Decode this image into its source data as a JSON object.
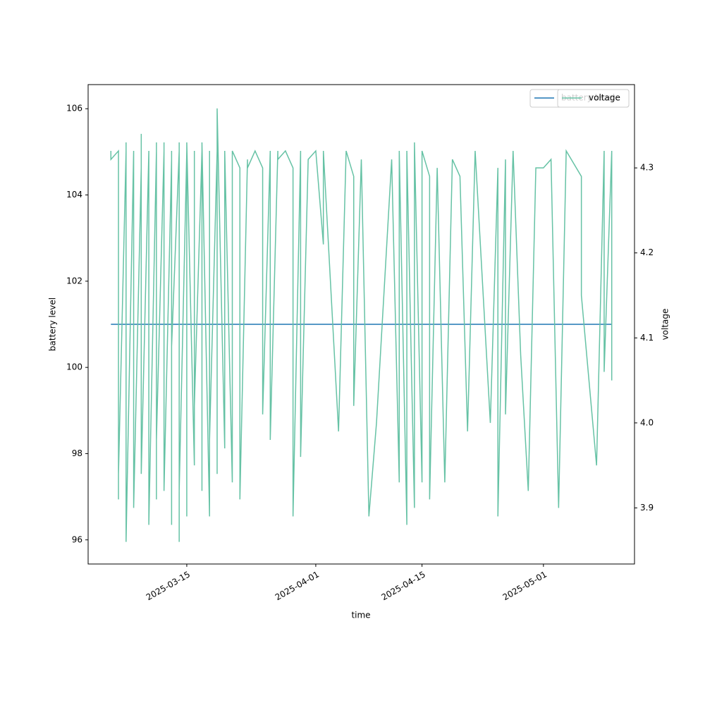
{
  "chart_data": {
    "type": "line",
    "xlabel": "time",
    "ylabel": "battery level",
    "y2label": "voltage",
    "xlim": [
      "2025-03-02",
      "2025-05-13"
    ],
    "xticks": [
      "2025-03-15",
      "2025-04-01",
      "2025-04-15",
      "2025-05-01"
    ],
    "ylim": [
      95.44,
      106.56
    ],
    "yticks": [
      96,
      98,
      100,
      102,
      104,
      106
    ],
    "y2lim": [
      3.834,
      4.398
    ],
    "y2ticks": [
      3.9,
      {
        "value": 4,
        "label": "4.0"
      },
      4.1,
      4.2,
      4.3
    ],
    "legend": "upper right",
    "series": [
      {
        "name": "battery level",
        "color": "#1f77b4",
        "x": [
          "2025-03-05",
          "2025-05-10"
        ],
        "values": [
          101,
          101
        ]
      },
      {
        "name": "voltage",
        "color": "#66c2a5",
        "axis": "y2",
        "x": [
          "2025-03-05",
          "2025-03-05",
          "2025-03-06",
          "2025-03-06",
          "2025-03-06",
          "2025-03-06",
          "2025-03-07",
          "2025-03-07",
          "2025-03-07",
          "2025-03-07",
          "2025-03-08",
          "2025-03-08",
          "2025-03-08",
          "2025-03-08",
          "2025-03-09",
          "2025-03-09",
          "2025-03-09",
          "2025-03-09",
          "2025-03-10",
          "2025-03-10",
          "2025-03-10",
          "2025-03-10",
          "2025-03-11",
          "2025-03-11",
          "2025-03-11",
          "2025-03-11",
          "2025-03-12",
          "2025-03-12",
          "2025-03-12",
          "2025-03-12",
          "2025-03-13",
          "2025-03-13",
          "2025-03-13",
          "2025-03-13",
          "2025-03-14",
          "2025-03-14",
          "2025-03-14",
          "2025-03-14",
          "2025-03-15",
          "2025-03-15",
          "2025-03-15",
          "2025-03-16",
          "2025-03-16",
          "2025-03-16",
          "2025-03-17",
          "2025-03-17",
          "2025-03-17",
          "2025-03-18",
          "2025-03-18",
          "2025-03-18",
          "2025-03-19",
          "2025-03-19",
          "2025-03-19",
          "2025-03-20",
          "2025-03-20",
          "2025-03-21",
          "2025-03-21",
          "2025-03-22",
          "2025-03-22",
          "2025-03-23",
          "2025-03-23",
          "2025-03-24",
          "2025-03-25",
          "2025-03-25",
          "2025-03-26",
          "2025-03-26",
          "2025-03-27",
          "2025-03-27",
          "2025-03-28",
          "2025-03-29",
          "2025-03-29",
          "2025-03-30",
          "2025-03-30",
          "2025-03-31",
          "2025-04-01",
          "2025-04-02",
          "2025-04-02",
          "2025-04-04",
          "2025-04-05",
          "2025-04-06",
          "2025-04-06",
          "2025-04-07",
          "2025-04-08",
          "2025-04-09",
          "2025-04-11",
          "2025-04-12",
          "2025-04-12",
          "2025-04-13",
          "2025-04-13",
          "2025-04-14",
          "2025-04-14",
          "2025-04-15",
          "2025-04-15",
          "2025-04-16",
          "2025-04-16",
          "2025-04-17",
          "2025-04-18",
          "2025-04-19",
          "2025-04-20",
          "2025-04-21",
          "2025-04-22",
          "2025-04-24",
          "2025-04-25",
          "2025-04-25",
          "2025-04-26",
          "2025-04-26",
          "2025-04-27",
          "2025-04-28",
          "2025-04-29",
          "2025-04-30",
          "2025-05-01",
          "2025-05-02",
          "2025-05-03",
          "2025-05-04",
          "2025-05-06",
          "2025-05-06",
          "2025-05-08",
          "2025-05-09",
          "2025-05-09",
          "2025-05-10",
          "2025-05-10"
        ],
        "values": [
          4.32,
          4.31,
          4.32,
          3.91,
          4.32,
          3.94,
          4.32,
          3.94,
          4.33,
          3.86,
          4.32,
          4.06,
          4.32,
          3.9,
          4.3,
          4.07,
          4.34,
          3.94,
          4.32,
          3.93,
          4.32,
          3.88,
          4.32,
          3.91,
          4.33,
          3.98,
          4.32,
          3.94,
          4.33,
          3.92,
          4.31,
          3.88,
          4.32,
          4.09,
          4.32,
          3.86,
          4.33,
          3.92,
          4.32,
          3.89,
          4.33,
          3.95,
          4.32,
          4.02,
          4.32,
          3.92,
          4.33,
          3.89,
          4.32,
          3.98,
          4.32,
          3.94,
          4.37,
          3.97,
          4.32,
          3.93,
          4.32,
          4.3,
          3.91,
          4.31,
          4.3,
          4.32,
          4.3,
          4.01,
          4.32,
          3.98,
          4.32,
          4.31,
          4.32,
          4.3,
          3.89,
          4.32,
          3.96,
          4.31,
          4.32,
          4.21,
          4.32,
          3.99,
          4.32,
          4.29,
          4.02,
          4.31,
          3.89,
          4.0,
          4.31,
          3.93,
          4.32,
          3.88,
          4.32,
          3.9,
          4.33,
          3.93,
          4.32,
          4.29,
          3.91,
          4.3,
          3.93,
          4.31,
          4.29,
          3.99,
          4.32,
          4.0,
          4.3,
          3.89,
          4.31,
          4.01,
          4.32,
          4.08,
          3.92,
          4.3,
          4.3,
          4.31,
          3.9,
          4.32,
          4.29,
          4.15,
          3.95,
          4.32,
          4.06,
          4.32,
          4.05
        ]
      }
    ]
  }
}
